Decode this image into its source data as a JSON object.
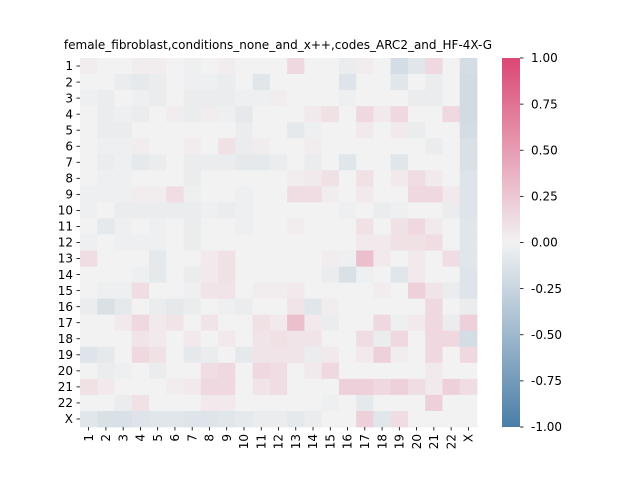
{
  "chart_data": {
    "type": "heatmap",
    "title": "female_fibroblast,conditions_none_and_x++,codes_ARC2_and_HF-4X-G",
    "xlabel": "",
    "ylabel": "",
    "row_labels": [
      "1",
      "2",
      "3",
      "4",
      "5",
      "6",
      "7",
      "8",
      "9",
      "10",
      "11",
      "12",
      "13",
      "14",
      "15",
      "16",
      "17",
      "18",
      "19",
      "20",
      "21",
      "22",
      "X"
    ],
    "col_labels": [
      "1",
      "2",
      "3",
      "4",
      "5",
      "6",
      "7",
      "8",
      "9",
      "10",
      "11",
      "12",
      "13",
      "14",
      "15",
      "16",
      "17",
      "18",
      "19",
      "20",
      "21",
      "22",
      "X"
    ],
    "colorbar": {
      "vmin": -1.0,
      "vmax": 1.0,
      "ticks": [
        "-1.00",
        "-0.75",
        "-0.50",
        "-0.25",
        "0.00",
        "0.25",
        "0.50",
        "0.75",
        "1.00"
      ],
      "colormap": "diverging",
      "low_color": "#4a7ea8",
      "mid_color": "#f2f2f2",
      "high_color": "#db4774"
    },
    "values": [
      [
        0.03,
        0.0,
        0.0,
        0.03,
        0.03,
        0.0,
        -0.03,
        0.0,
        0.03,
        0.0,
        0.0,
        0.0,
        0.15,
        0.0,
        0.0,
        -0.05,
        0.03,
        0.0,
        -0.18,
        -0.1,
        0.15,
        0.0,
        -0.18
      ],
      [
        0.0,
        0.0,
        -0.05,
        -0.08,
        -0.05,
        0.0,
        -0.03,
        -0.03,
        -0.05,
        0.0,
        -0.1,
        0.0,
        0.0,
        0.0,
        0.0,
        -0.12,
        0.0,
        0.0,
        -0.1,
        0.0,
        -0.05,
        0.0,
        -0.2
      ],
      [
        -0.03,
        -0.05,
        0.0,
        -0.03,
        -0.05,
        0.0,
        -0.05,
        -0.05,
        -0.05,
        -0.03,
        -0.03,
        0.03,
        0.0,
        0.0,
        0.0,
        -0.03,
        0.0,
        0.0,
        0.0,
        -0.05,
        -0.05,
        0.0,
        -0.2
      ],
      [
        0.0,
        -0.05,
        -0.03,
        -0.05,
        0.0,
        0.03,
        -0.05,
        0.03,
        -0.03,
        -0.08,
        0.0,
        0.0,
        0.0,
        0.05,
        0.1,
        0.0,
        0.15,
        0.05,
        0.15,
        0.0,
        0.0,
        0.15,
        -0.2
      ],
      [
        0.0,
        -0.05,
        -0.05,
        0.0,
        0.0,
        0.0,
        0.0,
        0.0,
        0.0,
        -0.05,
        0.0,
        0.0,
        -0.08,
        -0.03,
        0.0,
        0.0,
        0.05,
        0.0,
        0.05,
        -0.05,
        0.0,
        0.0,
        -0.18
      ],
      [
        0.0,
        -0.03,
        -0.03,
        0.03,
        0.0,
        0.0,
        0.03,
        0.0,
        0.1,
        -0.05,
        0.03,
        0.0,
        0.0,
        0.03,
        0.0,
        0.0,
        0.0,
        0.0,
        0.0,
        0.0,
        -0.05,
        0.0,
        -0.15
      ],
      [
        0.0,
        -0.05,
        -0.03,
        -0.08,
        -0.05,
        0.0,
        -0.05,
        -0.05,
        -0.05,
        -0.08,
        -0.08,
        -0.05,
        0.0,
        -0.05,
        0.0,
        -0.1,
        0.0,
        0.0,
        -0.1,
        0.0,
        0.0,
        0.0,
        -0.15
      ],
      [
        0.0,
        -0.03,
        -0.03,
        0.0,
        0.0,
        0.0,
        -0.05,
        0.0,
        0.0,
        0.0,
        0.0,
        0.0,
        0.03,
        0.05,
        0.1,
        0.0,
        0.1,
        0.0,
        0.05,
        0.12,
        0.05,
        0.0,
        -0.12
      ],
      [
        -0.03,
        -0.03,
        -0.03,
        0.03,
        0.03,
        0.12,
        -0.03,
        0.0,
        0.0,
        -0.03,
        0.0,
        0.0,
        0.12,
        0.12,
        0.03,
        0.0,
        0.05,
        0.0,
        0.0,
        0.15,
        0.15,
        0.05,
        -0.12
      ],
      [
        -0.03,
        0.0,
        -0.05,
        -0.05,
        -0.05,
        -0.05,
        -0.05,
        -0.03,
        -0.05,
        -0.03,
        0.0,
        0.0,
        0.0,
        0.0,
        0.0,
        -0.03,
        0.0,
        -0.05,
        -0.03,
        0.0,
        0.0,
        -0.05,
        -0.12
      ],
      [
        0.0,
        -0.08,
        -0.03,
        0.0,
        -0.03,
        0.0,
        -0.05,
        0.0,
        0.0,
        -0.03,
        0.0,
        0.0,
        0.03,
        0.0,
        0.0,
        0.0,
        0.1,
        0.0,
        0.1,
        0.15,
        0.05,
        0.0,
        -0.1
      ],
      [
        -0.03,
        0.0,
        -0.03,
        -0.03,
        -0.03,
        0.0,
        -0.05,
        0.0,
        0.0,
        0.0,
        0.0,
        0.0,
        0.0,
        0.0,
        0.0,
        0.0,
        0.05,
        0.05,
        0.1,
        0.1,
        0.12,
        0.0,
        -0.1
      ],
      [
        0.12,
        0.0,
        0.0,
        0.0,
        -0.08,
        0.0,
        0.0,
        0.05,
        0.1,
        0.0,
        0.0,
        0.0,
        0.0,
        0.0,
        0.03,
        -0.03,
        0.3,
        0.05,
        0.0,
        0.05,
        0.0,
        0.12,
        -0.1
      ],
      [
        0.0,
        0.0,
        0.0,
        -0.03,
        -0.08,
        0.0,
        -0.05,
        0.05,
        0.1,
        0.0,
        0.0,
        0.0,
        0.0,
        0.0,
        -0.05,
        -0.15,
        -0.03,
        0.0,
        -0.1,
        0.05,
        0.0,
        0.0,
        -0.12
      ],
      [
        0.0,
        -0.03,
        -0.03,
        0.12,
        0.0,
        0.0,
        -0.03,
        0.08,
        0.08,
        0.0,
        0.03,
        0.03,
        0.05,
        0.0,
        0.0,
        0.0,
        0.0,
        0.03,
        0.0,
        0.2,
        0.08,
        -0.05,
        -0.12
      ],
      [
        -0.05,
        -0.15,
        -0.08,
        0.0,
        -0.05,
        -0.08,
        -0.05,
        0.0,
        -0.03,
        -0.05,
        0.0,
        0.0,
        0.08,
        -0.1,
        0.03,
        0.0,
        0.0,
        0.0,
        0.0,
        0.0,
        0.15,
        0.0,
        -0.05
      ],
      [
        0.0,
        0.0,
        0.05,
        0.15,
        0.05,
        0.08,
        0.0,
        0.08,
        0.0,
        0.0,
        0.1,
        0.05,
        0.3,
        0.05,
        -0.05,
        0.0,
        0.0,
        0.15,
        -0.03,
        0.05,
        0.15,
        -0.05,
        0.2
      ],
      [
        0.0,
        0.0,
        0.0,
        0.08,
        0.05,
        0.0,
        0.05,
        0.0,
        0.05,
        0.0,
        0.08,
        0.1,
        0.08,
        0.08,
        0.0,
        0.0,
        0.12,
        -0.05,
        0.15,
        0.0,
        0.15,
        0.15,
        -0.18
      ],
      [
        -0.12,
        -0.08,
        0.0,
        0.15,
        0.1,
        0.0,
        -0.08,
        -0.05,
        0.0,
        -0.08,
        0.08,
        0.08,
        0.08,
        -0.05,
        0.05,
        0.0,
        0.05,
        0.2,
        0.03,
        0.0,
        0.15,
        0.0,
        0.15
      ],
      [
        0.0,
        -0.05,
        -0.03,
        0.0,
        -0.05,
        0.0,
        0.0,
        0.12,
        0.15,
        0.0,
        0.15,
        0.12,
        0.0,
        0.05,
        0.15,
        0.0,
        0.0,
        0.0,
        0.0,
        0.0,
        0.05,
        0.0,
        0.0
      ],
      [
        0.1,
        0.05,
        0.0,
        0.0,
        0.0,
        0.03,
        0.05,
        0.15,
        0.15,
        0.0,
        0.08,
        0.12,
        0.0,
        0.0,
        0.0,
        0.2,
        0.2,
        0.15,
        0.2,
        0.12,
        0.05,
        0.2,
        0.12
      ],
      [
        0.0,
        0.0,
        -0.05,
        0.1,
        0.0,
        0.0,
        0.0,
        0.05,
        0.05,
        0.0,
        0.0,
        0.0,
        0.0,
        0.0,
        -0.03,
        0.0,
        -0.08,
        0.0,
        0.0,
        0.0,
        0.2,
        0.0,
        0.0
      ],
      [
        -0.1,
        -0.15,
        -0.15,
        -0.12,
        -0.1,
        -0.1,
        -0.12,
        -0.12,
        -0.1,
        -0.08,
        -0.05,
        -0.05,
        -0.08,
        -0.05,
        0.0,
        0.0,
        0.2,
        -0.1,
        0.12,
        0.0,
        0.0,
        0.0,
        0.0
      ]
    ]
  }
}
